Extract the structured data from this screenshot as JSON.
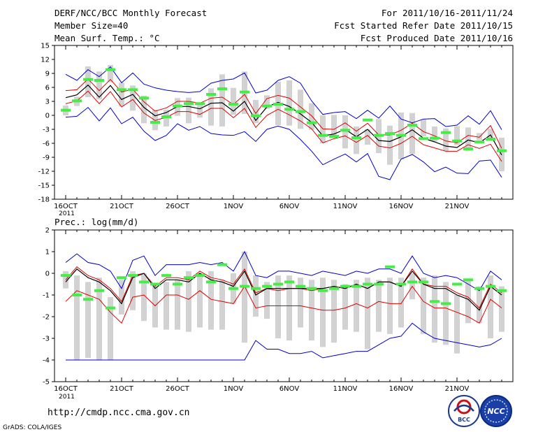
{
  "header": {
    "title": "DERF/NCC/BCC Monthly Forecast",
    "member_size": "Member Size=40",
    "variable": "Mean Surf. Temp.: °C",
    "for_range": "For 2011/10/16-2011/11/24",
    "fcst_started": "Fcst Started Refer Date 2011/10/15",
    "fcst_produced": "Fcst Produced Date 2011/10/16"
  },
  "footer": {
    "url": "http://cmdp.ncc.cma.gov.cn",
    "credit": "GrADS: COLA/IGES",
    "logo_left_text": "BCC",
    "logo_right_text": "NCC"
  },
  "colors": {
    "box": "#d2d2d2",
    "obs": "#44ee44",
    "mean": "#000000",
    "spread": "#e00000",
    "envelope": "#0000cc"
  },
  "chart_data": [
    {
      "type": "line",
      "title": "Mean Surf. Temp.: °C",
      "ylim": [
        -18,
        15
      ],
      "yticks": [
        "15",
        "12",
        "9",
        "6",
        "3",
        "0",
        "-3",
        "-6",
        "-9",
        "-12",
        "-15",
        "-18"
      ],
      "xticks": [
        "16OCT",
        "21OCT",
        "26OCT",
        "1NOV",
        "6NOV",
        "11NOV",
        "16NOV",
        "21NOV"
      ],
      "x_year": "2011",
      "days": 40,
      "series": [
        {
          "name": "max",
          "values": [
            8.8,
            7.5,
            9.8,
            8.3,
            10.4,
            7.0,
            9.1,
            6.7,
            5.9,
            5.4,
            5.1,
            4.9,
            5.1,
            6.9,
            7.5,
            7.8,
            9.1,
            4.8,
            5.4,
            7.5,
            8.3,
            6.9,
            3.1,
            0.2,
            0.6,
            0.8,
            -0.7,
            1.1,
            -0.6,
            2.0,
            -0.8,
            -1.6,
            -0.8,
            -0.7,
            -2.4,
            -2.1,
            -0.1,
            -1.9,
            1.0,
            -3.1
          ]
        },
        {
          "name": "upper",
          "values": [
            5.3,
            5.5,
            7.8,
            5.3,
            7.7,
            5.0,
            5.6,
            2.9,
            0.9,
            1.6,
            3.0,
            3.0,
            2.6,
            3.7,
            3.9,
            2.3,
            4.5,
            0.4,
            3.6,
            4.3,
            3.7,
            1.8,
            -0.1,
            -2.9,
            -3.0,
            -1.6,
            -3.4,
            -1.7,
            -4.2,
            -4.2,
            -3.2,
            -1.7,
            -3.5,
            -4.4,
            -5.5,
            -5.9,
            -4.3,
            -4.7,
            -2.2,
            -7.1
          ]
        },
        {
          "name": "mean",
          "values": [
            3.8,
            4.4,
            6.5,
            3.9,
            6.4,
            3.4,
            4.5,
            1.7,
            -0.1,
            0.6,
            1.9,
            1.9,
            1.4,
            2.6,
            2.7,
            0.9,
            3.0,
            -1.1,
            1.8,
            2.8,
            1.9,
            0.3,
            -1.5,
            -4.4,
            -4.0,
            -3.0,
            -4.6,
            -3.0,
            -5.4,
            -5.6,
            -4.6,
            -3.1,
            -4.9,
            -5.7,
            -6.6,
            -6.9,
            -5.3,
            -5.9,
            -4.2,
            -8.5
          ]
        },
        {
          "name": "lower",
          "values": [
            2.5,
            3.1,
            5.2,
            2.5,
            5.1,
            1.8,
            3.4,
            0.5,
            -1.1,
            -0.4,
            0.8,
            0.8,
            0.2,
            1.5,
            1.5,
            -0.5,
            1.5,
            -2.6,
            0.0,
            1.3,
            0.1,
            -1.2,
            -2.9,
            -5.9,
            -5.0,
            -4.4,
            -5.8,
            -4.3,
            -6.6,
            -7.0,
            -6.0,
            -4.5,
            -6.3,
            -7.0,
            -7.7,
            -7.7,
            -6.3,
            -7.1,
            -6.2,
            -9.9
          ]
        },
        {
          "name": "min",
          "values": [
            -0.4,
            -0.2,
            1.7,
            -1.2,
            1.6,
            -1.8,
            -0.4,
            -3.4,
            -5.4,
            -4.3,
            -1.8,
            -3.2,
            -2.4,
            -3.9,
            -4.2,
            -4.3,
            -3.5,
            -5.6,
            -3.0,
            -2.3,
            -3.0,
            -5.2,
            -7.7,
            -10.6,
            -9.4,
            -8.3,
            -10.0,
            -8.2,
            -13.1,
            -13.8,
            -9.4,
            -8.4,
            -10.0,
            -12.1,
            -11.1,
            -12.4,
            -12.5,
            -9.8,
            -9.6,
            -13.3
          ]
        },
        {
          "name": "box_top",
          "values": [
            2.1,
            4.0,
            10.5,
            9.4,
            10.8,
            7.0,
            6.4,
            4.2,
            1.2,
            1.2,
            3.7,
            3.8,
            2.8,
            5.8,
            8.8,
            5.9,
            9.4,
            3.3,
            4.3,
            7.2,
            7.5,
            5.5,
            2.6,
            0.0,
            0.1,
            0.0,
            -2.4,
            -3.0,
            -0.8,
            -2.2,
            0.6,
            0.5,
            -0.9,
            -2.4,
            -2.8,
            -2.3,
            -2.6,
            -3.8,
            -2.9,
            -4.8
          ]
        },
        {
          "name": "box_bottom",
          "values": [
            0.0,
            2.0,
            3.9,
            3.4,
            7.1,
            1.9,
            1.0,
            -1.7,
            -3.2,
            -2.4,
            -0.1,
            -1.7,
            -0.5,
            -2.2,
            -2.4,
            0.1,
            0.3,
            -1.7,
            1.4,
            -2.1,
            -2.2,
            -2.9,
            -3.1,
            -6.0,
            -4.3,
            -7.1,
            -8.3,
            -6.3,
            -8.1,
            -10.6,
            -9.4,
            -8.3,
            -4.5,
            -5.6,
            -7.7,
            -6.4,
            -7.6,
            -5.3,
            -5.3,
            -12.0
          ]
        },
        {
          "name": "obs",
          "values": [
            1.1,
            3.1,
            7.7,
            7.5,
            9.8,
            5.5,
            5.5,
            3.7,
            -1.5,
            -0.3,
            2.0,
            2.5,
            2.5,
            4.5,
            5.7,
            2.4,
            5.0,
            -0.1,
            2.0,
            2.4,
            1.3,
            0.8,
            -1.6,
            -4.3,
            -4.5,
            -3.2,
            -4.8,
            -1.0,
            -4.3,
            -3.9,
            -4.3,
            -2.1,
            -5.0,
            -4.9,
            -3.7,
            -5.5,
            -7.2,
            -5.7,
            -5.1,
            -7.6
          ]
        }
      ]
    },
    {
      "type": "line",
      "title": "Prec.: log(mm/d)",
      "ylim": [
        -5,
        2
      ],
      "yticks": [
        "2",
        "1",
        "0",
        "-1",
        "-2",
        "-3",
        "-4",
        "-5"
      ],
      "xticks": [
        "16OCT",
        "21OCT",
        "26OCT",
        "1NOV",
        "6NOV",
        "11NOV",
        "16NOV",
        "21NOV"
      ],
      "x_year": "2011",
      "days": 40,
      "series": [
        {
          "name": "max",
          "values": [
            0.5,
            0.9,
            0.5,
            0.4,
            0.1,
            -0.7,
            0.6,
            0.8,
            -0.1,
            0.4,
            0.4,
            0.4,
            0.5,
            0.4,
            0.5,
            0.1,
            1.0,
            -0.1,
            -0.2,
            0.1,
            0.1,
            0.0,
            -0.1,
            0.1,
            0.0,
            -0.1,
            0.1,
            0.0,
            0.2,
            0.2,
            0.0,
            0.8,
            0.0,
            -0.2,
            -0.1,
            -0.2,
            -0.5,
            -0.8,
            0.1,
            -0.3
          ]
        },
        {
          "name": "upper",
          "values": [
            -0.3,
            0.3,
            -0.1,
            -0.3,
            -0.7,
            -1.3,
            -0.1,
            0.0,
            -0.6,
            -0.2,
            -0.2,
            -0.3,
            0.1,
            -0.2,
            -0.3,
            -0.5,
            0.2,
            -0.9,
            -0.7,
            -0.8,
            -0.7,
            -0.7,
            -0.8,
            -0.7,
            -0.6,
            -0.7,
            -0.5,
            -0.7,
            -0.4,
            -0.4,
            -0.6,
            0.2,
            -0.5,
            -0.6,
            -0.6,
            -0.9,
            -1.1,
            -1.6,
            -0.5,
            -0.9
          ]
        },
        {
          "name": "mean",
          "values": [
            -0.4,
            0.2,
            -0.2,
            -0.4,
            -0.8,
            -1.4,
            -0.2,
            0.0,
            -0.7,
            -0.3,
            -0.3,
            -0.4,
            0.0,
            -0.3,
            -0.4,
            -0.6,
            0.1,
            -1.0,
            -0.7,
            -0.7,
            -0.7,
            -0.7,
            -0.7,
            -0.7,
            -0.6,
            -0.7,
            -0.5,
            -0.7,
            -0.4,
            -0.4,
            -0.6,
            0.1,
            -0.5,
            -0.7,
            -0.7,
            -1.0,
            -1.2,
            -1.7,
            -0.6,
            -1.0
          ]
        },
        {
          "name": "lower",
          "values": [
            -1.3,
            -0.8,
            -1.0,
            -1.2,
            -1.8,
            -2.3,
            -1.1,
            -1.0,
            -1.5,
            -1.0,
            -1.0,
            -1.2,
            -0.8,
            -1.2,
            -1.3,
            -1.4,
            -0.6,
            -1.6,
            -1.5,
            -1.5,
            -1.5,
            -1.5,
            -1.6,
            -1.7,
            -1.7,
            -1.6,
            -1.4,
            -1.6,
            -1.3,
            -1.4,
            -1.4,
            -0.6,
            -1.3,
            -1.6,
            -1.6,
            -1.8,
            -2.0,
            -2.3,
            -1.2,
            -1.6
          ]
        },
        {
          "name": "min",
          "values": [
            -4.0,
            -4.0,
            -4.0,
            -4.0,
            -4.0,
            -4.0,
            -4.0,
            -4.0,
            -4.0,
            -4.0,
            -4.0,
            -4.0,
            -4.0,
            -4.0,
            -4.0,
            -4.0,
            -4.0,
            -3.1,
            -3.5,
            -3.5,
            -3.7,
            -3.7,
            -3.6,
            -3.9,
            -3.8,
            -3.7,
            -3.6,
            -3.6,
            -3.3,
            -3.0,
            -2.9,
            -2.3,
            -2.7,
            -3.0,
            -3.1,
            -3.2,
            -3.3,
            -3.4,
            -3.3,
            -3.0
          ]
        },
        {
          "name": "box_top",
          "values": [
            0.1,
            -0.1,
            -0.4,
            -0.2,
            -1.1,
            -0.3,
            0.1,
            0.0,
            -0.6,
            -0.4,
            -0.3,
            0.1,
            0.0,
            0.1,
            -0.3,
            0.0,
            1.0,
            -0.1,
            -0.4,
            -0.1,
            -0.1,
            -0.2,
            -0.3,
            -0.2,
            -0.3,
            -0.5,
            -0.3,
            -0.2,
            -0.3,
            -0.2,
            -0.2,
            0.0,
            -0.2,
            -0.1,
            -0.4,
            -1.0,
            -0.3,
            -0.6,
            -0.1,
            -0.6
          ]
        },
        {
          "name": "box_bottom",
          "values": [
            -0.7,
            -4.0,
            -3.9,
            -4.0,
            -4.0,
            -1.9,
            -1.7,
            -2.2,
            -2.5,
            -2.6,
            -2.6,
            -2.7,
            -2.5,
            -2.6,
            -2.6,
            -1.4,
            -3.2,
            -2.0,
            -2.1,
            -3.0,
            -3.1,
            -2.5,
            -3.1,
            -3.4,
            -3.2,
            -2.6,
            -2.7,
            -3.5,
            -2.7,
            -2.8,
            -2.5,
            -1.2,
            -2.8,
            -3.2,
            -3.3,
            -3.7,
            -2.3,
            -2.3,
            -3.0,
            -2.7
          ]
        },
        {
          "name": "obs",
          "values": [
            -0.1,
            -1.0,
            -1.2,
            -0.8,
            -1.6,
            -0.2,
            -0.1,
            -0.4,
            -0.5,
            -0.1,
            -0.5,
            -0.2,
            -0.1,
            -0.4,
            0.4,
            -0.7,
            -0.6,
            -0.7,
            -0.6,
            -0.5,
            -0.4,
            -0.6,
            -0.7,
            -0.8,
            -0.7,
            -0.6,
            -0.6,
            -0.5,
            -0.5,
            0.3,
            -0.5,
            -0.4,
            -0.4,
            -1.3,
            -1.4,
            -0.5,
            -0.3,
            -0.7,
            -0.6,
            -0.8
          ]
        }
      ]
    }
  ]
}
